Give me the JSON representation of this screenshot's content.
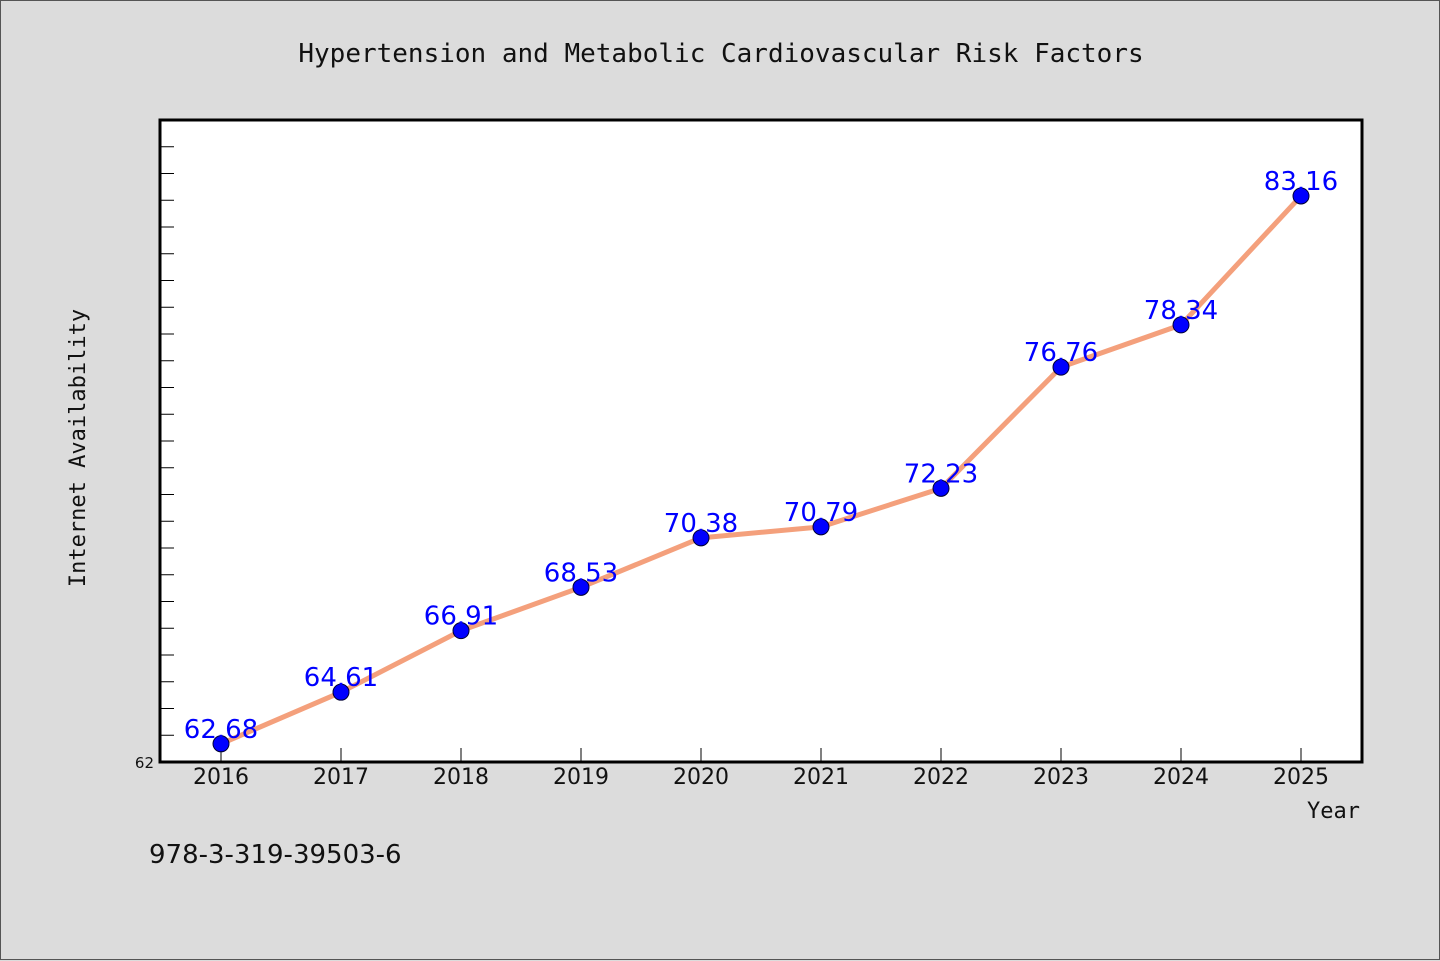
{
  "chart_data": {
    "type": "line",
    "title": "Hypertension and Metabolic Cardiovascular Risk Factors",
    "xlabel": "Year",
    "ylabel": "Internet Availability",
    "categories": [
      "2016",
      "2017",
      "2018",
      "2019",
      "2020",
      "2021",
      "2022",
      "2023",
      "2024",
      "2025"
    ],
    "series": [
      {
        "values": [
          62.68,
          64.61,
          66.91,
          68.53,
          70.38,
          70.79,
          72.23,
          76.76,
          78.34,
          83.16
        ],
        "labels": [
          "62.68",
          "64.61",
          "66.91",
          "68.53",
          "70.38",
          "70.79",
          "72.23",
          "76.76",
          "78.34",
          "83.16"
        ]
      }
    ],
    "yticks": [
      "62"
    ],
    "ylim": [
      62,
      86
    ],
    "grid": false,
    "line_color": "#f4a07c",
    "marker_color": "#0000ff",
    "label_color": "#0000ff"
  },
  "footer": {
    "text": "978-3-319-39503-6"
  }
}
